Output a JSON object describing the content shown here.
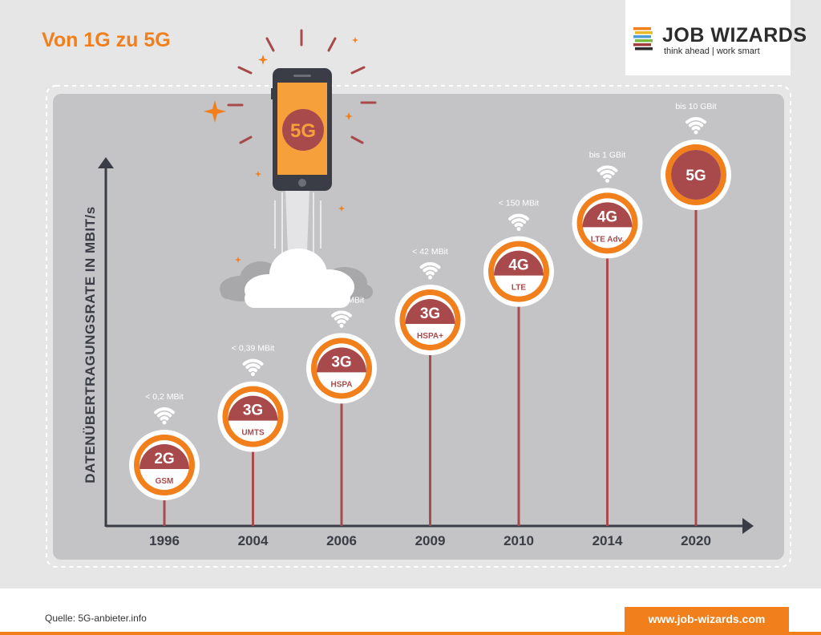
{
  "title": "Von 1G zu 5G",
  "logo": {
    "name": "JOB WIZARDS",
    "tagline": "think ahead | work smart",
    "stripe_colors": [
      "#f07f1c",
      "#e9b92a",
      "#4b9fd6",
      "#7dbb42",
      "#a33c3e",
      "#2c2c2c"
    ]
  },
  "phone": {
    "screen_label": "5G"
  },
  "footer": {
    "source": "Quelle: 5G-anbieter.info",
    "url": "www.job-wizards.com"
  },
  "colors": {
    "orange": "#f07f1c",
    "red": "#a84a4b",
    "panel": "#c4c4c6",
    "axis": "#3a3d45"
  },
  "chart_data": {
    "type": "timeline",
    "ylabel": "DATENÜBERTRAGUNGSRATE IN MBIT/s",
    "points": [
      {
        "year": "1996",
        "gen": "2G",
        "tech": "GSM",
        "rate": "< 0,2 MBit",
        "level": 0
      },
      {
        "year": "2004",
        "gen": "3G",
        "tech": "UMTS",
        "rate": "< 0,39 MBit",
        "level": 1
      },
      {
        "year": "2006",
        "gen": "3G",
        "tech": "HSPA",
        "rate": "< = 7,2 MBit",
        "level": 2
      },
      {
        "year": "2009",
        "gen": "3G",
        "tech": "HSPA+",
        "rate": "< 42 MBit",
        "level": 3
      },
      {
        "year": "2010",
        "gen": "4G",
        "tech": "LTE",
        "rate": "< 150 MBit",
        "level": 4
      },
      {
        "year": "2014",
        "gen": "4G",
        "tech": "LTE Adv.",
        "rate": "bis 1 GBit",
        "level": 5
      },
      {
        "year": "2020",
        "gen": "5G",
        "tech": "",
        "rate": "bis 10 GBit",
        "level": 6
      }
    ]
  }
}
